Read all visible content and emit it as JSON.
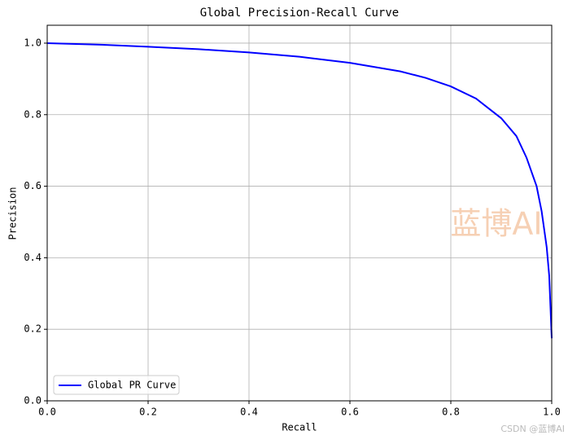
{
  "chart_data": {
    "type": "line",
    "title": "Global Precision-Recall Curve",
    "x_label": "Recall",
    "y_label": "Precision",
    "x": [
      0,
      0.1,
      0.2,
      0.3,
      0.4,
      0.5,
      0.6,
      0.7,
      0.75,
      0.8,
      0.85,
      0.9,
      0.93,
      0.95,
      0.97,
      0.98,
      0.99,
      0.995,
      1.0
    ],
    "series": [
      {
        "name": "Global PR Curve",
        "color": "#0000ff",
        "values": [
          1.0,
          0.996,
          0.99,
          0.983,
          0.974,
          0.962,
          0.945,
          0.921,
          0.903,
          0.879,
          0.845,
          0.79,
          0.74,
          0.68,
          0.6,
          0.53,
          0.43,
          0.35,
          0.175
        ]
      }
    ],
    "xlim": [
      0,
      1
    ],
    "ylim": [
      0,
      1.05
    ],
    "xticks": [
      {
        "value": 0,
        "label": "0.0"
      },
      0.2,
      0.4,
      0.6,
      0.8,
      {
        "value": 1,
        "label": "1.0"
      }
    ],
    "yticks": [
      {
        "value": 0,
        "label": "0.0"
      },
      0.2,
      0.4,
      0.6,
      0.8,
      {
        "value": 1,
        "label": "1.0"
      }
    ],
    "grid": true,
    "legend": "lower left",
    "watermark": "蓝博AI",
    "credit": "CSDN @蓝博AI"
  }
}
